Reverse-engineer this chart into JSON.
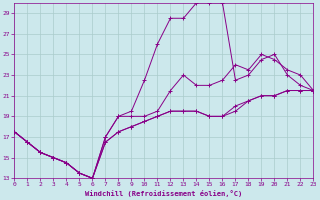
{
  "xlabel": "Windchill (Refroidissement éolien,°C)",
  "bg_color": "#cce8ec",
  "grid_color": "#aacccc",
  "line_color": "#880088",
  "xmin": 0,
  "xmax": 23,
  "ymin": 13,
  "ymax": 30,
  "yticks": [
    13,
    15,
    17,
    19,
    21,
    23,
    25,
    27,
    29
  ],
  "xticks": [
    0,
    1,
    2,
    3,
    4,
    5,
    6,
    7,
    8,
    9,
    10,
    11,
    12,
    13,
    14,
    15,
    16,
    17,
    18,
    19,
    20,
    21,
    22,
    23
  ],
  "lines": [
    {
      "x": [
        0,
        1,
        2,
        3,
        4,
        5,
        6,
        7,
        8,
        9,
        10,
        11,
        12,
        13,
        14,
        15,
        16,
        17,
        18,
        19,
        20,
        21,
        22,
        23
      ],
      "y": [
        17.5,
        16.5,
        15.5,
        15.0,
        14.5,
        13.5,
        13.0,
        16.5,
        17.5,
        18.0,
        18.5,
        19.0,
        19.5,
        19.5,
        19.5,
        19.0,
        19.0,
        19.5,
        20.5,
        21.0,
        21.0,
        21.5,
        21.5,
        21.5
      ]
    },
    {
      "x": [
        0,
        1,
        2,
        3,
        4,
        5,
        6,
        7,
        8,
        9,
        10,
        11,
        12,
        13,
        14,
        15,
        16,
        17,
        18,
        19,
        20,
        21,
        22,
        23
      ],
      "y": [
        17.5,
        16.5,
        15.5,
        15.0,
        14.5,
        13.5,
        13.0,
        17.0,
        19.0,
        19.5,
        22.5,
        26.0,
        28.5,
        28.5,
        30.0,
        30.0,
        30.0,
        22.5,
        23.0,
        24.5,
        25.0,
        23.0,
        22.0,
        21.5
      ]
    },
    {
      "x": [
        0,
        1,
        2,
        3,
        4,
        5,
        6,
        7,
        8,
        9,
        10,
        11,
        12,
        13,
        14,
        15,
        16,
        17,
        18,
        19,
        20,
        21,
        22,
        23
      ],
      "y": [
        17.5,
        16.5,
        15.5,
        15.0,
        14.5,
        13.5,
        13.0,
        17.0,
        19.0,
        19.0,
        19.0,
        19.5,
        21.5,
        23.0,
        22.0,
        22.0,
        22.5,
        24.0,
        23.5,
        25.0,
        24.5,
        23.5,
        23.0,
        21.5
      ]
    },
    {
      "x": [
        0,
        1,
        2,
        3,
        4,
        5,
        6,
        7,
        8,
        9,
        10,
        11,
        12,
        13,
        14,
        15,
        16,
        17,
        18,
        19,
        20,
        21,
        22,
        23
      ],
      "y": [
        17.5,
        16.5,
        15.5,
        15.0,
        14.5,
        13.5,
        13.0,
        16.5,
        17.5,
        18.0,
        18.5,
        19.0,
        19.5,
        19.5,
        19.5,
        19.0,
        19.0,
        20.0,
        20.5,
        21.0,
        21.0,
        21.5,
        21.5,
        21.5
      ]
    }
  ]
}
